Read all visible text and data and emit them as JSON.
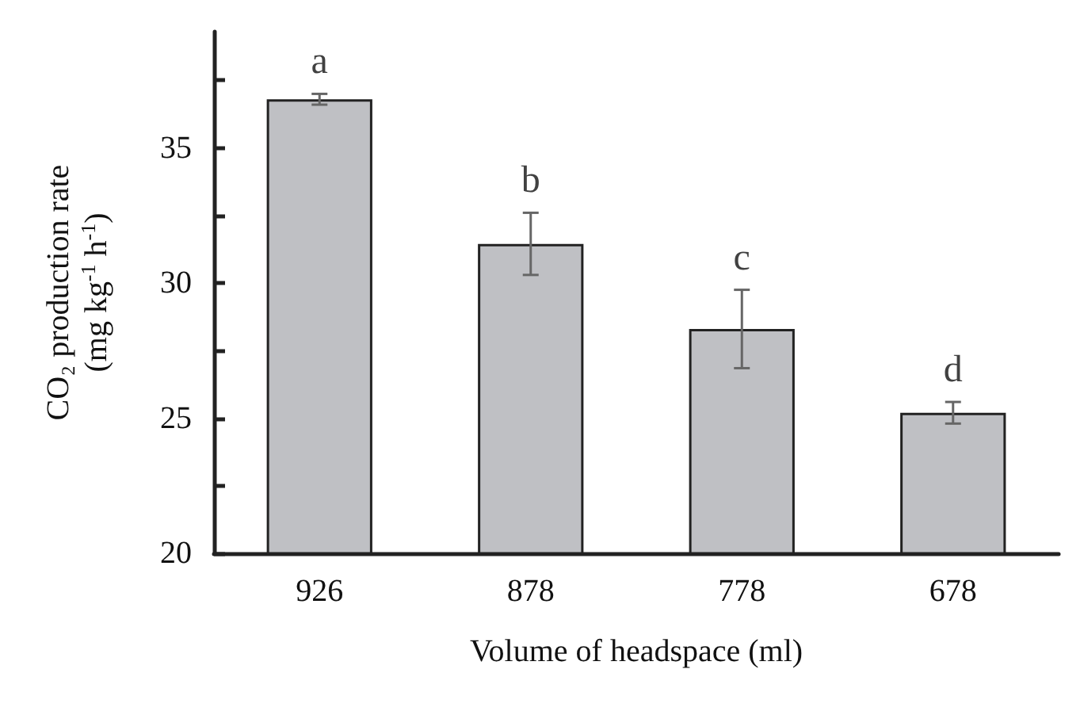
{
  "chart_data": {
    "type": "bar",
    "xlabel": "Volume of headspace (ml)",
    "ylabel": "CO₂ production rate\n(mg kg$^{-1}$ h$^{-1}$)",
    "categories": [
      "926",
      "878",
      "778",
      "678"
    ],
    "values": [
      36.8,
      31.45,
      28.3,
      25.2
    ],
    "errors": [
      0.2,
      1.15,
      1.45,
      0.4
    ],
    "color": "#bfc0c4",
    "ylim": [
      20,
      39.3
    ],
    "yticks": [
      20,
      {
        "value": 22.5,
        "label": null
      },
      25,
      {
        "value": 27.5,
        "label": null
      },
      30,
      {
        "value": 32.5,
        "label": null
      },
      35,
      {
        "value": 37.5,
        "label": null
      }
    ],
    "grid": false,
    "annotations": [
      {
        "text": "a",
        "x": "926",
        "y": 37.0
      },
      {
        "text": "b",
        "x": "878",
        "y": 32.6
      },
      {
        "text": "c",
        "x": "778",
        "y": 29.75
      },
      {
        "text": "d",
        "x": "678",
        "y": 25.6
      }
    ]
  }
}
